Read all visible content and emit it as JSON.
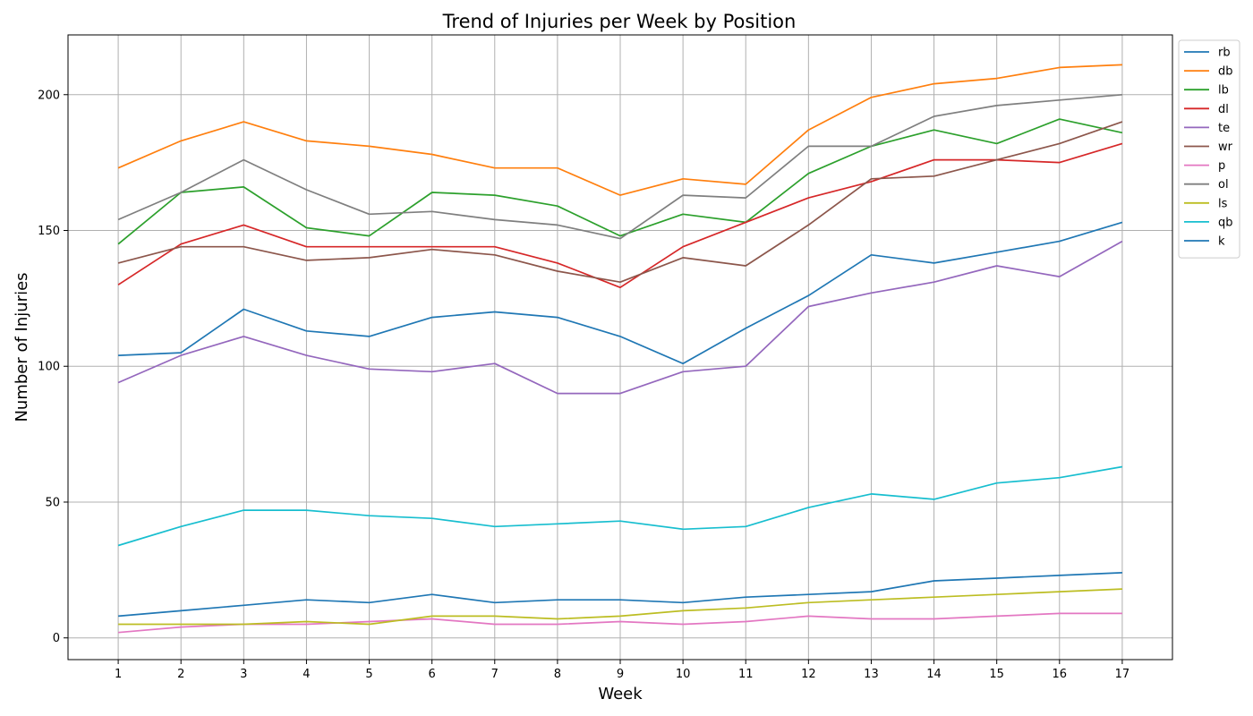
{
  "chart_data": {
    "type": "line",
    "title": "Trend of Injuries per Week by Position",
    "xlabel": "Week",
    "ylabel": "Number of Injuries",
    "x": [
      1,
      2,
      3,
      4,
      5,
      6,
      7,
      8,
      9,
      10,
      11,
      12,
      13,
      14,
      15,
      16,
      17
    ],
    "xlim": [
      0.2,
      17.8
    ],
    "ylim": [
      -8,
      222
    ],
    "yticks": [
      0,
      50,
      100,
      150,
      200
    ],
    "grid": true,
    "legend_position": "top-right-outside",
    "series": [
      {
        "name": "rb",
        "color": "#1f77b4",
        "values": [
          104,
          105,
          121,
          113,
          111,
          118,
          120,
          118,
          111,
          101,
          114,
          126,
          141,
          138,
          142,
          146,
          153
        ]
      },
      {
        "name": "db",
        "color": "#ff7f0e",
        "values": [
          173,
          183,
          190,
          183,
          181,
          178,
          173,
          173,
          163,
          169,
          167,
          187,
          199,
          204,
          206,
          210,
          211
        ]
      },
      {
        "name": "lb",
        "color": "#2ca02c",
        "values": [
          145,
          164,
          166,
          151,
          148,
          164,
          163,
          159,
          148,
          156,
          153,
          171,
          181,
          187,
          182,
          191,
          186
        ]
      },
      {
        "name": "dl",
        "color": "#d62728",
        "values": [
          130,
          145,
          152,
          144,
          144,
          144,
          144,
          138,
          129,
          144,
          153,
          162,
          168,
          176,
          176,
          175,
          182
        ]
      },
      {
        "name": "te",
        "color": "#9467bd",
        "values": [
          94,
          104,
          111,
          104,
          99,
          98,
          101,
          90,
          90,
          98,
          100,
          122,
          127,
          131,
          137,
          133,
          146
        ]
      },
      {
        "name": "wr",
        "color": "#8c564b",
        "values": [
          138,
          144,
          144,
          139,
          140,
          143,
          141,
          135,
          131,
          140,
          137,
          152,
          169,
          170,
          176,
          182,
          190
        ]
      },
      {
        "name": "p",
        "color": "#e377c2",
        "values": [
          2,
          4,
          5,
          5,
          6,
          7,
          5,
          5,
          6,
          5,
          6,
          8,
          7,
          7,
          8,
          9,
          9
        ]
      },
      {
        "name": "ol",
        "color": "#7f7f7f",
        "values": [
          154,
          164,
          176,
          165,
          156,
          157,
          154,
          152,
          147,
          163,
          162,
          181,
          181,
          192,
          196,
          198,
          200
        ]
      },
      {
        "name": "ls",
        "color": "#bcbd22",
        "values": [
          5,
          5,
          5,
          6,
          5,
          8,
          8,
          7,
          8,
          10,
          11,
          13,
          14,
          15,
          16,
          17,
          18
        ]
      },
      {
        "name": "qb",
        "color": "#17becf",
        "values": [
          34,
          41,
          47,
          47,
          45,
          44,
          41,
          42,
          43,
          40,
          41,
          48,
          53,
          51,
          57,
          59,
          63
        ]
      },
      {
        "name": "k",
        "color": "#1f77b4",
        "values": [
          8,
          10,
          12,
          14,
          13,
          16,
          13,
          14,
          14,
          13,
          15,
          16,
          17,
          21,
          22,
          23,
          24
        ]
      }
    ]
  }
}
